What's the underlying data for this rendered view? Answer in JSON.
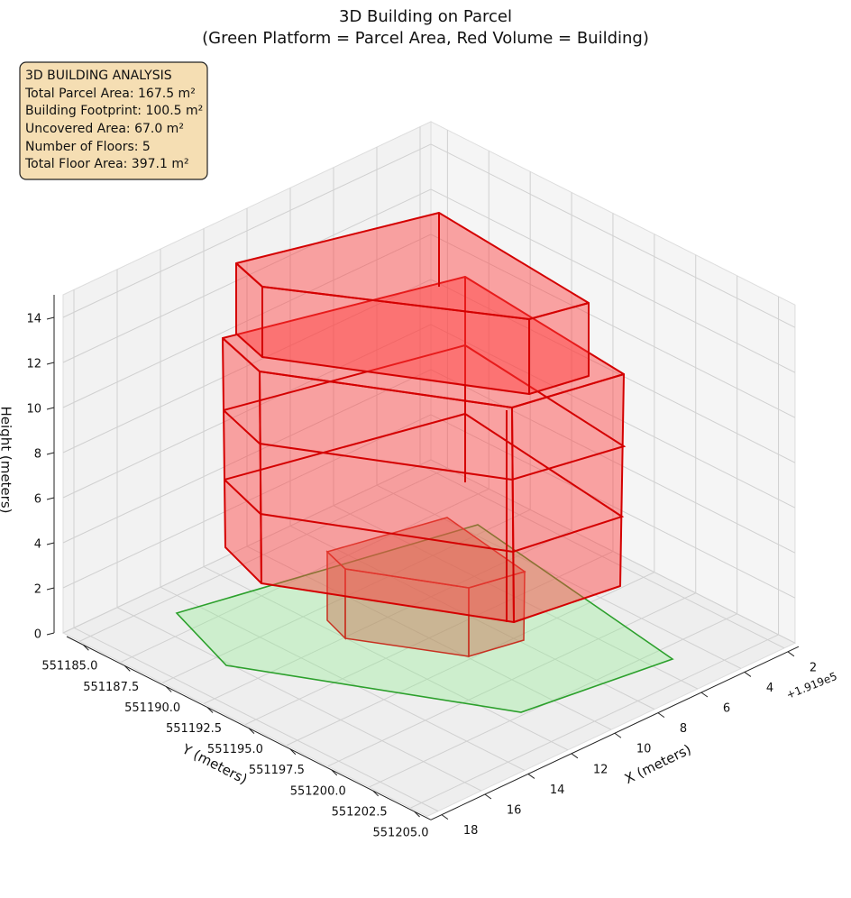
{
  "chart_data": {
    "type": "3d",
    "title": "3D Building on Parcel",
    "subtitle": "(Green Platform = Parcel Area, Red Volume = Building)",
    "xlabel": "X (meters)",
    "ylabel": "Y (meters)",
    "zlabel": "Height (meters)",
    "x_offset_label": "+1.919e5",
    "xlim": [
      1.5,
      18.5
    ],
    "ylim": [
      551184,
      551206
    ],
    "zlim": [
      0,
      15
    ],
    "xticks": [
      2,
      4,
      6,
      8,
      10,
      12,
      14,
      16,
      18
    ],
    "yticks": [
      {
        "value": 551185,
        "label": "551185.0"
      },
      {
        "value": 551187.5,
        "label": "551187.5"
      },
      {
        "value": 551190,
        "label": "551190.0"
      },
      {
        "value": 551192.5,
        "label": "551192.5"
      },
      {
        "value": 551195,
        "label": "551195.0"
      },
      {
        "value": 551197.5,
        "label": "551197.5"
      },
      {
        "value": 551200,
        "label": "551200.0"
      },
      {
        "value": 551202.5,
        "label": "551202.5"
      },
      {
        "value": 551205,
        "label": "551205.0"
      }
    ],
    "zticks": [
      0,
      2,
      4,
      6,
      8,
      10,
      12,
      14
    ],
    "grid": true,
    "annotation": [
      "3D BUILDING ANALYSIS",
      "Total Parcel Area: 167.5 m²",
      "Building Footprint: 100.5 m²",
      "Uncovered Area: 67.0 m²",
      "Number of Floors: 5",
      "Total Floor Area: 397.1 m²"
    ]
  }
}
